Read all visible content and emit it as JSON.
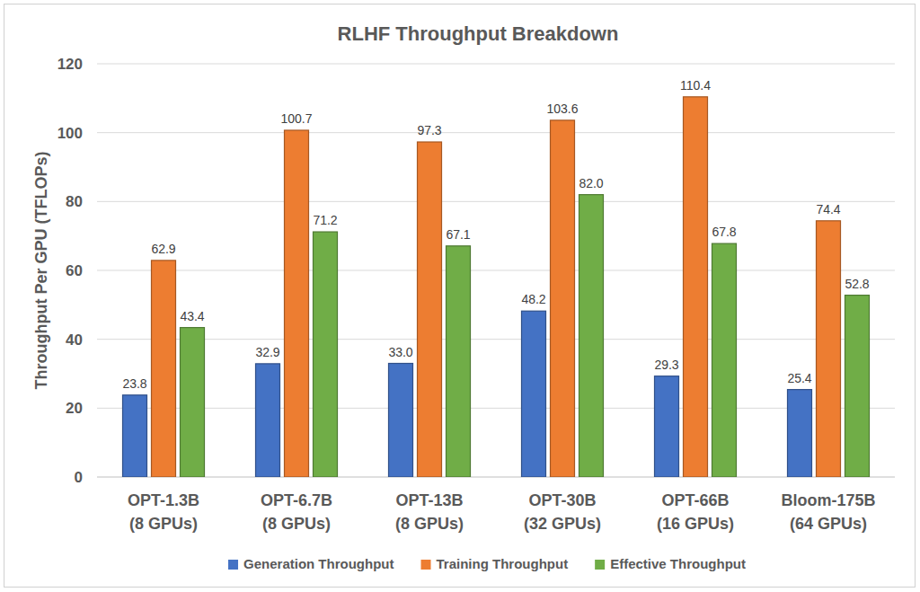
{
  "chart_data": {
    "type": "bar",
    "title": "RLHF Throughput Breakdown",
    "y_label": "Throughput Per GPU (TFLOPs)",
    "categories": [
      "OPT-1.3B\n(8 GPUs)",
      "OPT-6.7B\n(8 GPUs)",
      "OPT-13B\n(8 GPUs)",
      "OPT-30B\n(32 GPUs)",
      "OPT-66B\n(16 GPUs)",
      "Bloom-175B\n(64 GPUs)"
    ],
    "series": [
      {
        "name": "Generation Throughput",
        "color": "#4472c4",
        "values": [
          23.8,
          32.9,
          33.0,
          48.2,
          29.3,
          25.4
        ],
        "value_labels": [
          "23.8",
          "32.9",
          "33.0",
          "48.2",
          "29.3",
          "25.4"
        ]
      },
      {
        "name": "Training Throughput",
        "color": "#ed7d31",
        "values": [
          62.9,
          100.7,
          97.3,
          103.6,
          110.4,
          74.4
        ],
        "value_labels": [
          "62.9",
          "100.7",
          "97.3",
          "103.6",
          "110.4",
          "74.4"
        ]
      },
      {
        "name": "Effective Throughput",
        "color": "#70ad47",
        "values": [
          43.4,
          71.2,
          67.1,
          82.0,
          67.8,
          52.8
        ],
        "value_labels": [
          "43.4",
          "71.2",
          "67.1",
          "82.0",
          "67.8",
          "52.8"
        ]
      }
    ],
    "ylim": [
      0,
      120
    ],
    "yticks": [
      0,
      20,
      40,
      60,
      80,
      100,
      120
    ],
    "grid": true,
    "legend": "bottom",
    "data_labels": true
  }
}
